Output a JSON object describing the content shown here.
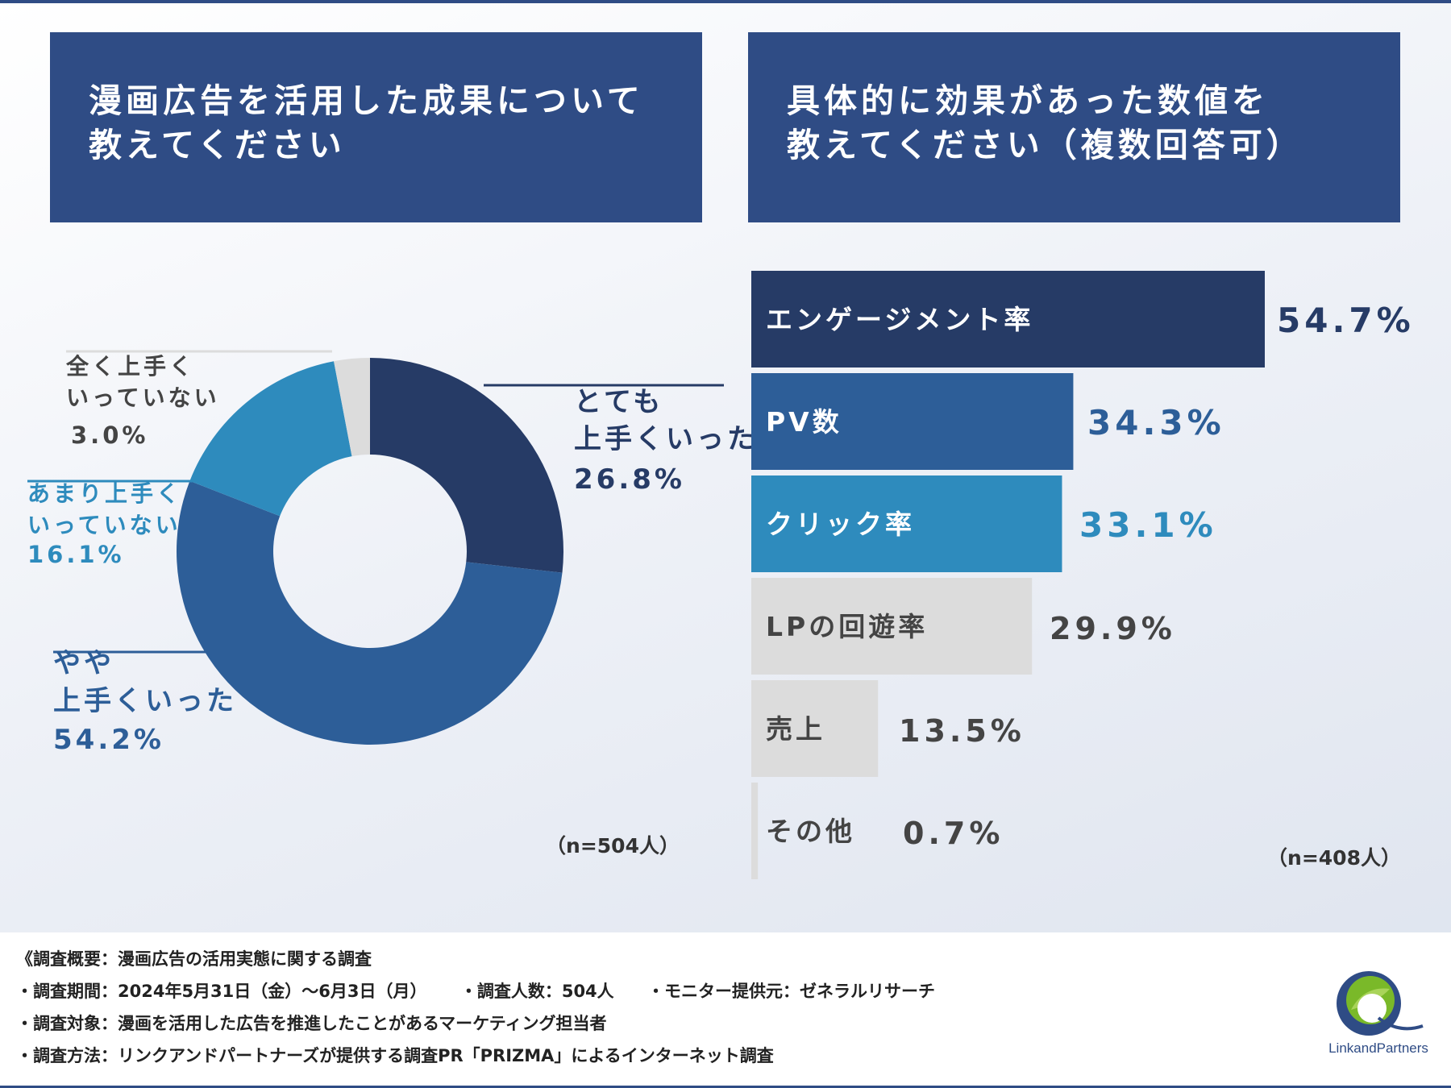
{
  "panels": {
    "left_title": [
      "漫画広告を活用した成果について",
      "教えてください"
    ],
    "right_title": [
      "具体的に効果があった数値を",
      "教えてください（複数回答可）"
    ]
  },
  "chart_data": [
    {
      "type": "pie",
      "title": "漫画広告を活用した成果について教えてください",
      "donut": true,
      "sample": "（n=504人）",
      "slices": [
        {
          "label": "とても上手くいった",
          "label_lines": [
            "とても",
            "上手くいった"
          ],
          "value": 26.8,
          "value_text": "26.8%",
          "color": "#263b66",
          "text_color": "#263b66"
        },
        {
          "label": "やや上手くいった",
          "label_lines": [
            "やや",
            "上手くいった"
          ],
          "value": 54.2,
          "value_text": "54.2%",
          "color": "#2d5e98",
          "text_color": "#2d5e98"
        },
        {
          "label": "あまり上手くいっていない",
          "label_lines": [
            "あまり上手く",
            "いっていない"
          ],
          "value": 16.1,
          "value_text": "16.1%",
          "color": "#2e8bbd",
          "text_color": "#2e8bbd"
        },
        {
          "label": "全く上手くいっていない",
          "label_lines": [
            "全く上手く",
            "いっていない"
          ],
          "value": 3.0,
          "value_text": "3.0%",
          "color": "#dcdcdc",
          "text_color": "#444444"
        }
      ]
    },
    {
      "type": "bar",
      "orientation": "horizontal",
      "title": "具体的に効果があった数値を教えてください（複数回答可）",
      "sample": "（n=408人）",
      "xlim": [
        0,
        54.7
      ],
      "bars": [
        {
          "label": "エンゲージメント率",
          "value": 54.7,
          "value_text": "54.7%",
          "color": "#263b66",
          "label_color": "#ffffff",
          "value_color": "#263b66"
        },
        {
          "label": "PV数",
          "value": 34.3,
          "value_text": "34.3%",
          "color": "#2d5e98",
          "label_color": "#ffffff",
          "value_color": "#2d5e98"
        },
        {
          "label": "クリック率",
          "value": 33.1,
          "value_text": "33.1%",
          "color": "#2e8bbd",
          "label_color": "#ffffff",
          "value_color": "#2e8bbd"
        },
        {
          "label": "LPの回遊率",
          "value": 29.9,
          "value_text": "29.9%",
          "color": "#dcdcdc",
          "label_color": "#444444",
          "value_color": "#444444"
        },
        {
          "label": "売上",
          "value": 13.5,
          "value_text": "13.5%",
          "color": "#dcdcdc",
          "label_color": "#444444",
          "value_color": "#444444"
        },
        {
          "label": "その他",
          "value": 0.7,
          "value_text": "0.7%",
          "color": "#dcdcdc",
          "label_color": "#444444",
          "value_color": "#444444"
        }
      ]
    }
  ],
  "footer": {
    "overview": "《調査概要：漫画広告の活用実態に関する調査",
    "period": "・調査期間：2024年5月31日（金）〜6月3日（月）",
    "respondents": "・調査人数：504人",
    "monitor": "・モニター提供元：ゼネラルリサーチ",
    "target": "・調査対象：漫画を活用した広告を推進したことがあるマーケティング担当者",
    "method": "・調査方法：リンクアンドパートナーズが提供する調査PR「PRIZMA」によるインターネット調査"
  },
  "logo": {
    "text": "LinkandPartners",
    "colors": [
      "#2f4c85",
      "#7ab929"
    ]
  }
}
